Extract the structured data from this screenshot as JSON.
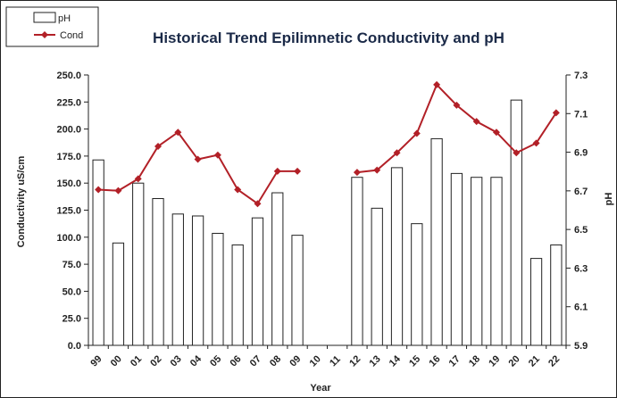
{
  "chart_data": {
    "type": "bar+line",
    "title": "Historical Trend Epilimnetic Conductivity and pH",
    "xlabel": "Year",
    "ylabel_left": "Conductivity uS/cm",
    "ylabel_right": "pH",
    "categories": [
      "99",
      "00",
      "01",
      "02",
      "03",
      "04",
      "05",
      "06",
      "07",
      "08",
      "09",
      "10",
      "11",
      "12",
      "13",
      "14",
      "15",
      "16",
      "17",
      "18",
      "19",
      "20",
      "21",
      "22"
    ],
    "left_axis": {
      "range": [
        0,
        250
      ],
      "ticks": [
        "0.0",
        "25.0",
        "50.0",
        "75.0",
        "100.0",
        "125.0",
        "150.0",
        "175.0",
        "200.0",
        "225.0",
        "250.0"
      ]
    },
    "right_axis": {
      "range": [
        5.9,
        7.3
      ],
      "ticks": [
        "5.9",
        "6.1",
        "6.3",
        "6.5",
        "6.7",
        "6.9",
        "7.1",
        "7.3"
      ]
    },
    "series": [
      {
        "name": "pH",
        "type": "bar",
        "axis": "right",
        "values": [
          6.86,
          6.43,
          6.74,
          6.66,
          6.58,
          6.57,
          6.48,
          6.42,
          6.56,
          6.69,
          6.47,
          null,
          null,
          6.77,
          6.61,
          6.82,
          6.53,
          6.97,
          6.79,
          6.77,
          6.77,
          7.17,
          6.35,
          6.42
        ]
      },
      {
        "name": "Cond",
        "type": "line",
        "axis": "left",
        "values": [
          144,
          143,
          154,
          184,
          197,
          172,
          176,
          144,
          131,
          161,
          161,
          null,
          null,
          160,
          162,
          178,
          196,
          241,
          222,
          207,
          197,
          178,
          187,
          215
        ]
      }
    ],
    "legend_position": "top-left",
    "grid": false,
    "colors": {
      "bar_fill": "#ffffff",
      "bar_stroke": "#222222",
      "line": "#b22027",
      "title": "#1b2a48"
    }
  }
}
